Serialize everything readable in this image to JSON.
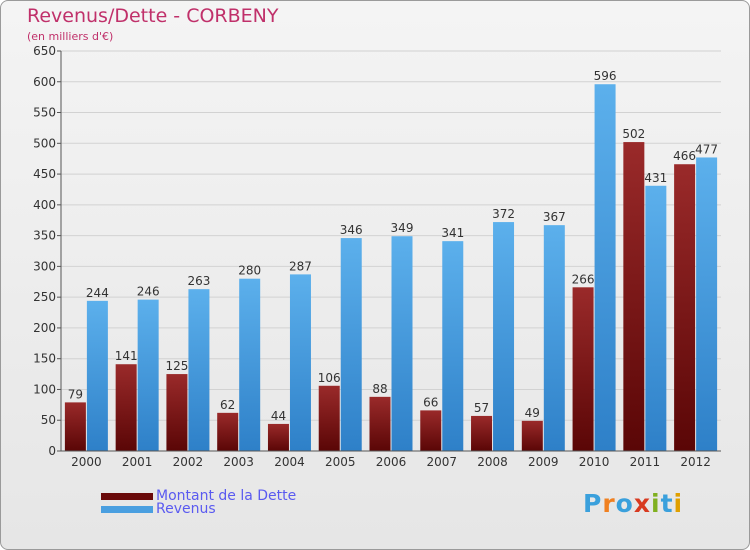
{
  "header": {
    "title": "Revenus/Dette - CORBENY",
    "subtitle": "(en milliers d'€)"
  },
  "legend": [
    {
      "label": "Montant de la Dette",
      "color": "#6a0a0a"
    },
    {
      "label": "Revenus",
      "color": "#4a9fe0"
    }
  ],
  "logo": {
    "text": "Proxiti",
    "letters": [
      "P",
      "r",
      "o",
      "x",
      "i",
      "t",
      "i"
    ],
    "colors": [
      "#3aa0dc",
      "#f08020",
      "#3aa0dc",
      "#d83a20",
      "#80b020",
      "#3aa0dc",
      "#e0a000"
    ]
  },
  "chart_data": {
    "type": "bar",
    "categories": [
      "2000",
      "2001",
      "2002",
      "2003",
      "2004",
      "2005",
      "2006",
      "2007",
      "2008",
      "2009",
      "2010",
      "2011",
      "2012"
    ],
    "series": [
      {
        "name": "Montant de la Dette",
        "values": [
          79,
          141,
          125,
          62,
          44,
          106,
          88,
          66,
          57,
          49,
          266,
          502,
          466
        ],
        "color": "#8a1c1c"
      },
      {
        "name": "Revenus",
        "values": [
          244,
          246,
          263,
          280,
          287,
          346,
          349,
          341,
          372,
          367,
          596,
          431,
          477
        ],
        "color": "#4a9fe0"
      }
    ],
    "title": "Revenus/Dette - CORBENY",
    "ylabel": "(en milliers d'€)",
    "ylim": [
      0,
      650
    ],
    "yticks": [
      0,
      50,
      100,
      150,
      200,
      250,
      300,
      350,
      400,
      450,
      500,
      550,
      600,
      650
    ],
    "grid": true,
    "legend_position": "bottom-left"
  }
}
